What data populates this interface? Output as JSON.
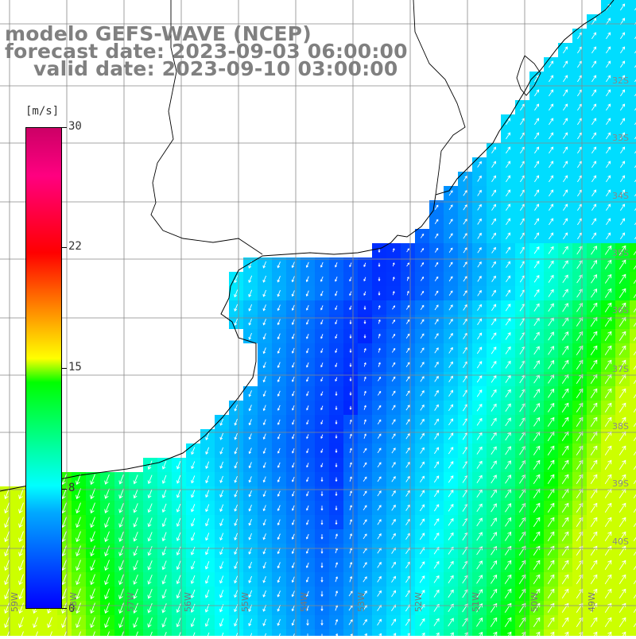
{
  "title": {
    "model": "modelo GEFS-WAVE (NCEP)",
    "forecast": "forecast date: 2023-09-03 06:00:00",
    "valid": "valid date: 2023-09-10 03:00:00"
  },
  "colorbar": {
    "unit": "[m/s]",
    "ticks": [
      {
        "value": 30,
        "label": "30"
      },
      {
        "value": 22,
        "label": "22"
      },
      {
        "value": 15,
        "label": "15"
      },
      {
        "value": 8,
        "label": "8"
      },
      {
        "value": 0,
        "label": "0"
      }
    ],
    "colors": [
      "#0000ff",
      "#00aaff",
      "#00ffff",
      "#00ff00",
      "#ffff00",
      "#ff8000",
      "#ff0000",
      "#cc0066"
    ]
  },
  "lon_labels": [
    "59W",
    "58W",
    "57W",
    "56W",
    "55W",
    "54W",
    "53W",
    "52W",
    "51W",
    "50W",
    "49W"
  ],
  "lat_labels": [
    "32S",
    "33S",
    "34S",
    "35S",
    "36S",
    "37S",
    "38S",
    "39S",
    "40S"
  ],
  "land_color": "#ffffff",
  "coast_color": "#000000"
}
